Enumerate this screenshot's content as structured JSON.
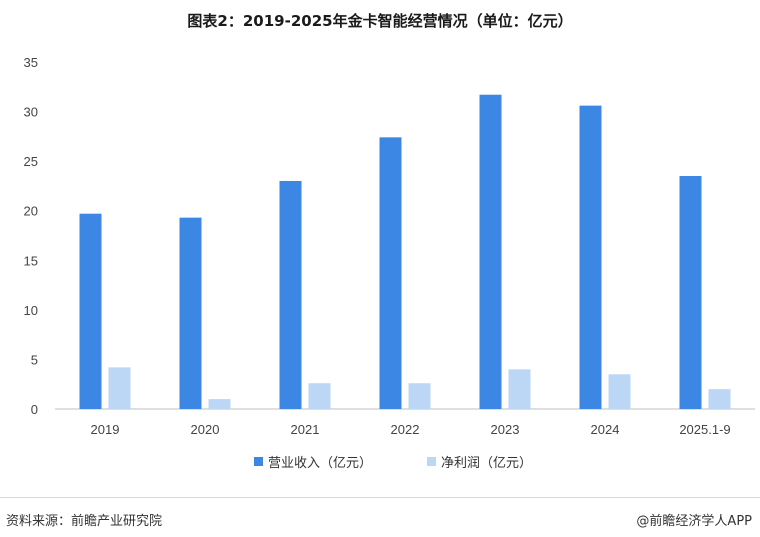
{
  "chart_data": {
    "type": "bar",
    "title": "图表2：2019-2025年金卡智能经营情况（单位：亿元）",
    "categories": [
      "2019",
      "2020",
      "2021",
      "2022",
      "2023",
      "2024",
      "2025.1-9"
    ],
    "series": [
      {
        "name": "营业收入（亿元）",
        "color": "#3d87e4",
        "values": [
          19.7,
          19.3,
          23.0,
          27.4,
          31.7,
          30.6,
          23.5
        ]
      },
      {
        "name": "净利润（亿元）",
        "color": "#bcd7f5",
        "values": [
          4.2,
          1.0,
          2.6,
          2.6,
          4.0,
          3.5,
          2.0
        ]
      }
    ],
    "yticks": [
      0,
      5,
      10,
      15,
      20,
      25,
      30,
      35
    ],
    "ylim": [
      0,
      35
    ],
    "legend_position": "bottom",
    "grid": false
  },
  "footer": {
    "source": "资料来源：前瞻产业研究院",
    "brand_symbol": "@",
    "brand": "前瞻经济学人APP"
  }
}
